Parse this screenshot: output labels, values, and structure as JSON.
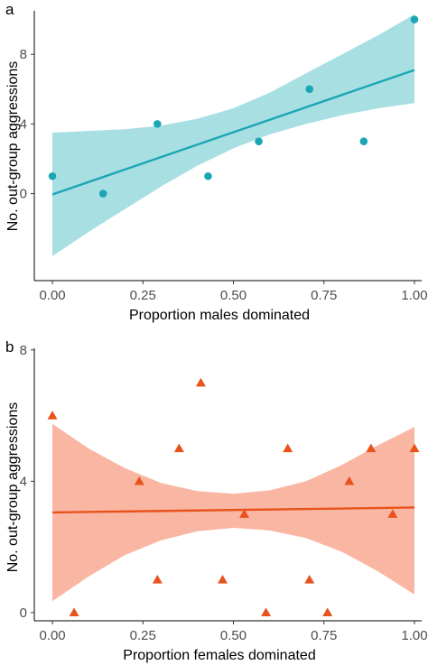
{
  "chart_data": [
    {
      "panel": "a",
      "type": "scatter",
      "xlabel": "Proportion males dominated",
      "ylabel": "No. out-group aggressions",
      "xlim": [
        -0.05,
        1.02
      ],
      "ylim": [
        -5,
        10.5
      ],
      "xticks": [
        0,
        0.25,
        0.5,
        0.75,
        1.0
      ],
      "xtick_labels": [
        "0.00",
        "0.25",
        "0.50",
        "0.75",
        "1.00"
      ],
      "yticks": [
        0,
        4,
        8
      ],
      "ytick_labels": [
        "0",
        "4",
        "8"
      ],
      "grid": false,
      "marker": "circle",
      "point_color": "#1ca6b4",
      "line_color": "#1ca6b4",
      "band_color": "#a8dfe3",
      "points": [
        {
          "x": 0.0,
          "y": 1
        },
        {
          "x": 0.14,
          "y": 0
        },
        {
          "x": 0.29,
          "y": 4
        },
        {
          "x": 0.43,
          "y": 1
        },
        {
          "x": 0.57,
          "y": 3
        },
        {
          "x": 0.71,
          "y": 6
        },
        {
          "x": 0.86,
          "y": 3
        },
        {
          "x": 1.0,
          "y": 10
        }
      ],
      "fit": {
        "x": [
          0,
          1
        ],
        "y": [
          -0.05,
          7.1
        ]
      },
      "band": {
        "x": [
          0,
          0.1,
          0.2,
          0.3,
          0.4,
          0.5,
          0.6,
          0.7,
          0.8,
          0.9,
          1.0
        ],
        "lower": [
          -3.6,
          -2.2,
          -0.9,
          0.4,
          1.6,
          2.6,
          3.4,
          4.0,
          4.5,
          4.9,
          5.2
        ],
        "upper": [
          3.5,
          3.6,
          3.7,
          3.9,
          4.3,
          4.9,
          5.8,
          6.9,
          8.0,
          9.1,
          10.3
        ]
      }
    },
    {
      "panel": "b",
      "type": "scatter",
      "xlabel": "Proportion females dominated",
      "ylabel": "No. out-group aggressions",
      "xlim": [
        -0.05,
        1.02
      ],
      "ylim": [
        -0.25,
        8.05
      ],
      "xticks": [
        0,
        0.25,
        0.5,
        0.75,
        1.0
      ],
      "xtick_labels": [
        "0.00",
        "0.25",
        "0.50",
        "0.75",
        "1.00"
      ],
      "yticks": [
        0,
        4,
        8
      ],
      "ytick_labels": [
        "0",
        "4",
        "8"
      ],
      "grid": false,
      "marker": "triangle",
      "point_color": "#e8531c",
      "line_color": "#e8531c",
      "band_color": "#f9b6a3",
      "points": [
        {
          "x": 0.0,
          "y": 6
        },
        {
          "x": 0.06,
          "y": 0
        },
        {
          "x": 0.24,
          "y": 4
        },
        {
          "x": 0.29,
          "y": 1
        },
        {
          "x": 0.35,
          "y": 5
        },
        {
          "x": 0.41,
          "y": 7
        },
        {
          "x": 0.47,
          "y": 1
        },
        {
          "x": 0.53,
          "y": 3
        },
        {
          "x": 0.59,
          "y": 0
        },
        {
          "x": 0.65,
          "y": 5
        },
        {
          "x": 0.71,
          "y": 1
        },
        {
          "x": 0.76,
          "y": 0
        },
        {
          "x": 0.82,
          "y": 4
        },
        {
          "x": 0.88,
          "y": 5
        },
        {
          "x": 0.94,
          "y": 3
        },
        {
          "x": 1.0,
          "y": 5
        }
      ],
      "fit": {
        "x": [
          0,
          1
        ],
        "y": [
          3.05,
          3.2
        ]
      },
      "band": {
        "x": [
          0,
          0.1,
          0.2,
          0.3,
          0.4,
          0.5,
          0.6,
          0.7,
          0.8,
          0.9,
          1.0
        ],
        "lower": [
          0.35,
          1.1,
          1.75,
          2.2,
          2.48,
          2.58,
          2.5,
          2.27,
          1.85,
          1.25,
          0.55
        ],
        "upper": [
          5.75,
          5.0,
          4.4,
          3.95,
          3.7,
          3.62,
          3.72,
          4.0,
          4.5,
          5.1,
          5.65
        ]
      }
    }
  ]
}
